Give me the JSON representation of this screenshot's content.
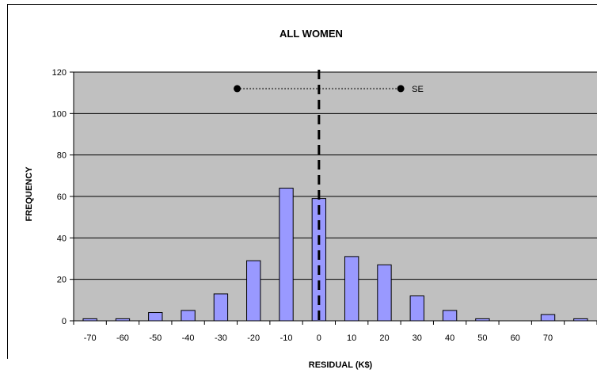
{
  "chart_data": {
    "type": "bar",
    "title": "ALL WOMEN",
    "xlabel": "RESIDUAL (K$)",
    "ylabel": "FREQUENCY",
    "x_tick_labels": [
      "-70",
      "-60",
      "-50",
      "-40",
      "-30",
      "-20",
      "-10",
      "0",
      "10",
      "20",
      "30",
      "40",
      "50",
      "60",
      "70"
    ],
    "y_tick_labels": [
      "0",
      "20",
      "40",
      "60",
      "80",
      "100",
      "120"
    ],
    "ylim": [
      0,
      120
    ],
    "x": [
      -70,
      -60,
      -50,
      -40,
      -30,
      -20,
      -10,
      0,
      10,
      20,
      30,
      40,
      50,
      60,
      70,
      80
    ],
    "values": [
      1,
      1,
      4,
      5,
      13,
      29,
      64,
      59,
      31,
      27,
      12,
      5,
      1,
      0,
      3,
      1
    ],
    "grid": true,
    "plot_background": "#c0c0c0",
    "bar_color": "#9999ff",
    "vertical_line": {
      "x": 0,
      "style": "dashed"
    },
    "se_annotation": {
      "label": "SE",
      "x_start": -25,
      "x_end": 25,
      "y": 112
    }
  }
}
